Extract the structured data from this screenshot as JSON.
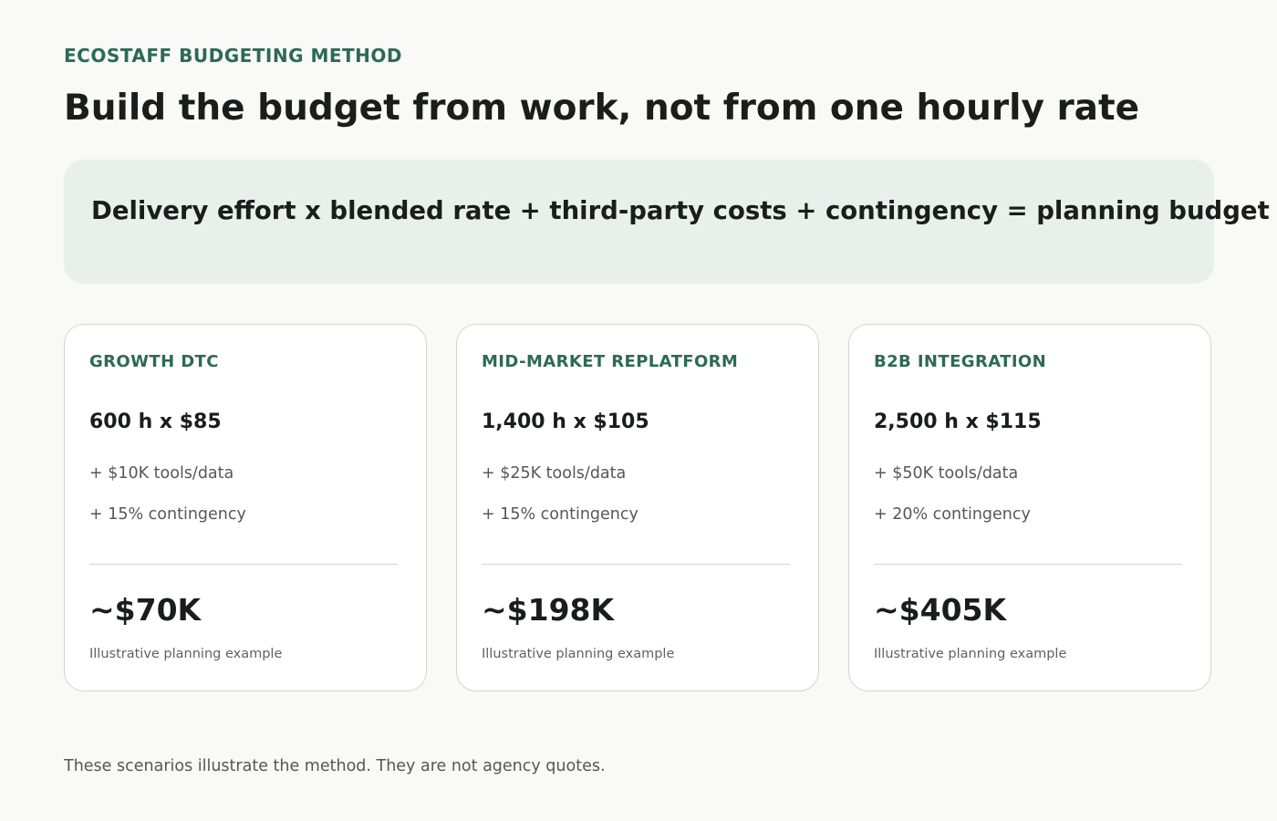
{
  "header": {
    "eyebrow": "ECOSTAFF BUDGETING METHOD",
    "title": "Build the budget from work, not from one hourly rate"
  },
  "formula": {
    "text": "Delivery effort x blended rate + third-party costs + contingency = planning budget"
  },
  "scenarios": [
    {
      "name": "GROWTH DTC",
      "calc": "600 h x $85",
      "tools": "+ $10K tools/data",
      "contingency": "+ 15% contingency",
      "total": "~$70K",
      "note": "Illustrative planning example"
    },
    {
      "name": "MID-MARKET REPLATFORM",
      "calc": "1,400 h x $105",
      "tools": "+ $25K tools/data",
      "contingency": "+ 15% contingency",
      "total": "~$198K",
      "note": "Illustrative planning example"
    },
    {
      "name": "B2B INTEGRATION",
      "calc": "2,500 h x $115",
      "tools": "+ $50K tools/data",
      "contingency": "+ 20% contingency",
      "total": "~$405K",
      "note": "Illustrative planning example"
    }
  ],
  "footnote": "These scenarios illustrate the method. They are not agency quotes.",
  "colors": {
    "accent": "#2c6a53",
    "formula_bg": "#e7f0eb",
    "page_bg": "#f9f9f7",
    "card_border": "#d3d3d1"
  }
}
